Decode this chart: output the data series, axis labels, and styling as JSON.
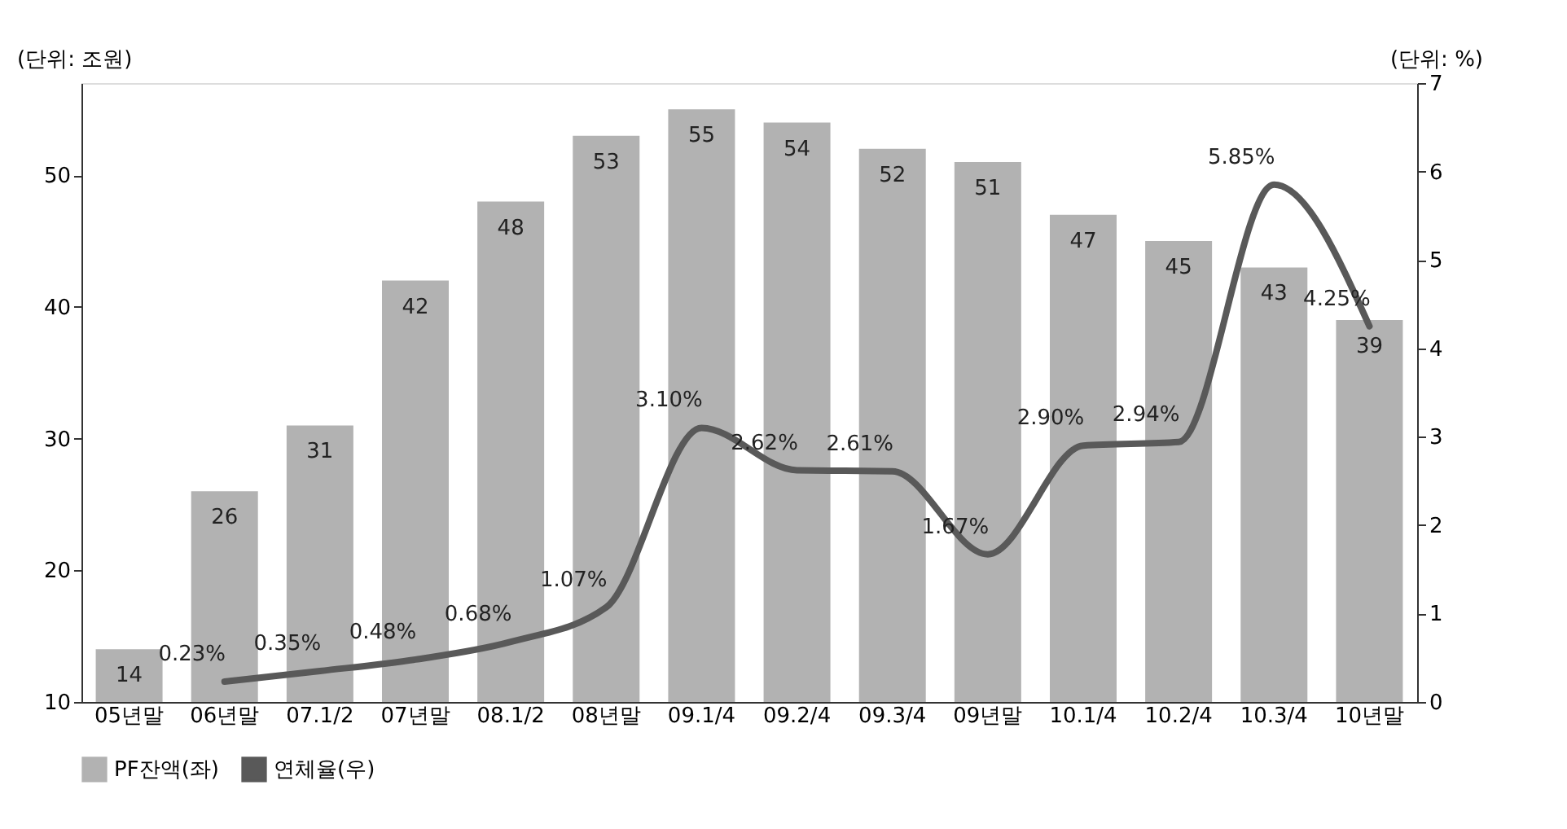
{
  "chart_data": {
    "type": "bar",
    "ylabel": "(단위: 조원)",
    "y2label": "(단위: %)",
    "categories": [
      "05년말",
      "06년말",
      "07.1/2",
      "07년말",
      "08.1/2",
      "08년말",
      "09.1/4",
      "09.2/4",
      "09.3/4",
      "09년말",
      "10.1/4",
      "10.2/4",
      "10.3/4",
      "10년말"
    ],
    "series": [
      {
        "name": "PF잔액(좌)",
        "color": "#b2b2b2",
        "values": [
          14,
          26,
          31,
          42,
          48,
          53,
          55,
          54,
          52,
          51,
          47,
          45,
          43,
          39
        ]
      },
      {
        "name": "연체율(우)",
        "type": "line",
        "axis": "y2",
        "color": "#595959",
        "values": [
          null,
          0.23,
          0.35,
          0.48,
          0.68,
          1.07,
          3.1,
          2.62,
          2.61,
          1.67,
          2.9,
          2.94,
          5.85,
          4.25
        ],
        "value_labels": [
          null,
          "0.23%",
          "0.35%",
          "0.48%",
          "0.68%",
          "1.07%",
          "3.10%",
          "2.62%",
          "2.61%",
          "1.67%",
          "2.90%",
          "2.94%",
          "5.85%",
          "4.25%"
        ]
      }
    ],
    "data_labels": true,
    "ylim": [
      10,
      57
    ],
    "yticks": [
      10,
      20,
      30,
      40,
      50
    ],
    "y2lim": [
      0,
      7
    ],
    "y2ticks": [
      0,
      1,
      2,
      3,
      4,
      5,
      6,
      7
    ],
    "grid": false,
    "legend": "bottom",
    "line_style": "solid",
    "marker": "none"
  }
}
